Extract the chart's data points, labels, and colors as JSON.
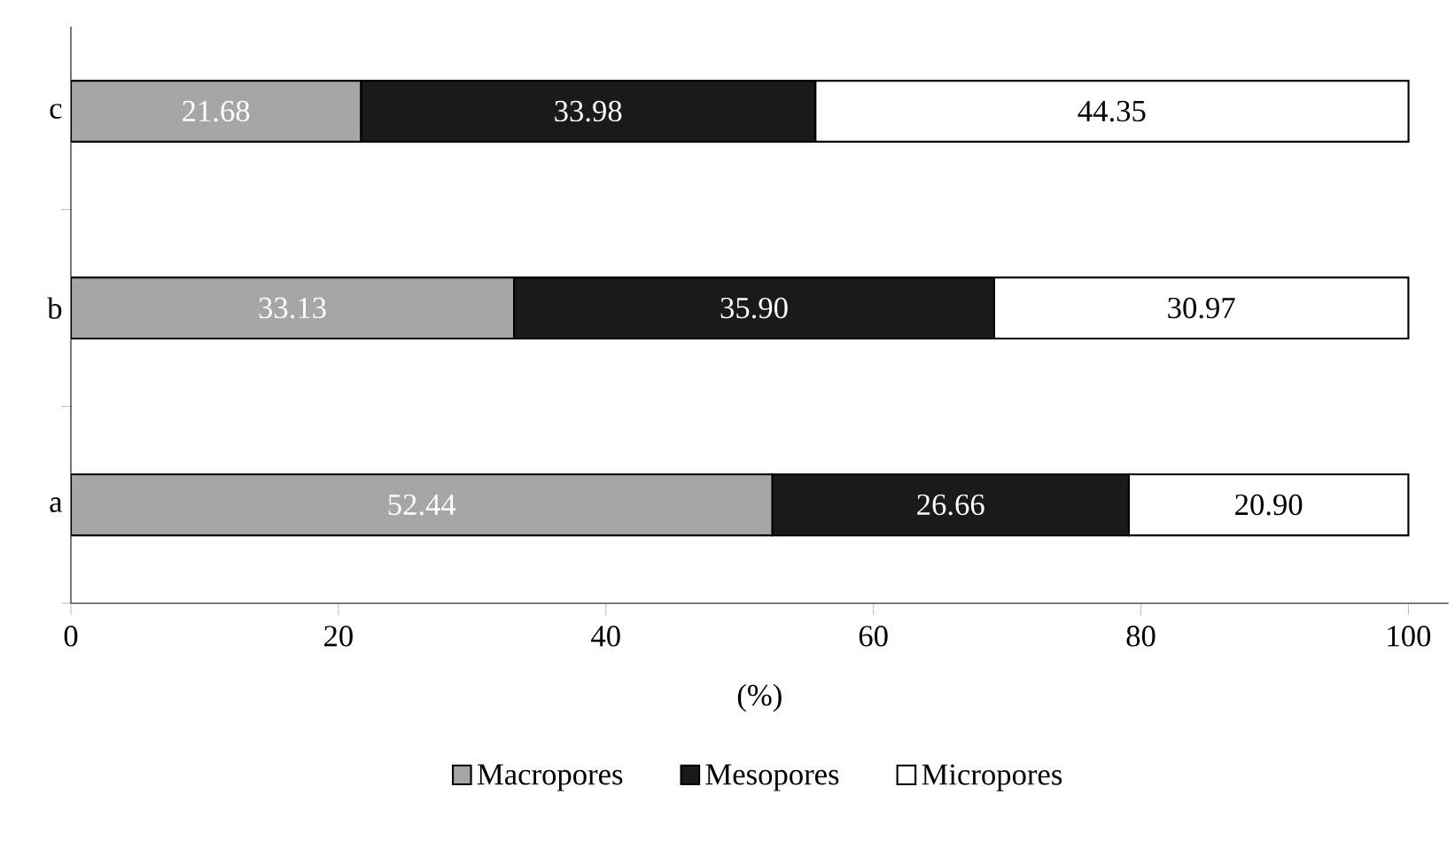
{
  "chart_data": {
    "type": "bar",
    "orientation": "horizontal",
    "stacked": true,
    "xlabel": "(%)",
    "categories": [
      "c",
      "b",
      "a"
    ],
    "series": [
      {
        "name": "Macropores",
        "color": "#a6a6a6",
        "values": [
          21.68,
          33.13,
          52.44
        ],
        "value_labels": [
          "21.68",
          "33.13",
          "52.44"
        ]
      },
      {
        "name": "Mesopores",
        "color": "#1a1a1a",
        "values": [
          33.98,
          35.9,
          26.66
        ],
        "value_labels": [
          "33.98",
          "35.90",
          "26.66"
        ]
      },
      {
        "name": "Micropores",
        "color": "#ffffff",
        "values": [
          44.35,
          30.97,
          20.9
        ],
        "value_labels": [
          "44.35",
          "30.97",
          "20.90"
        ]
      }
    ],
    "xlim": [
      0,
      103
    ],
    "xticks": [
      0,
      20,
      40,
      60,
      80,
      100
    ],
    "legend": "bottom",
    "grid": false
  }
}
